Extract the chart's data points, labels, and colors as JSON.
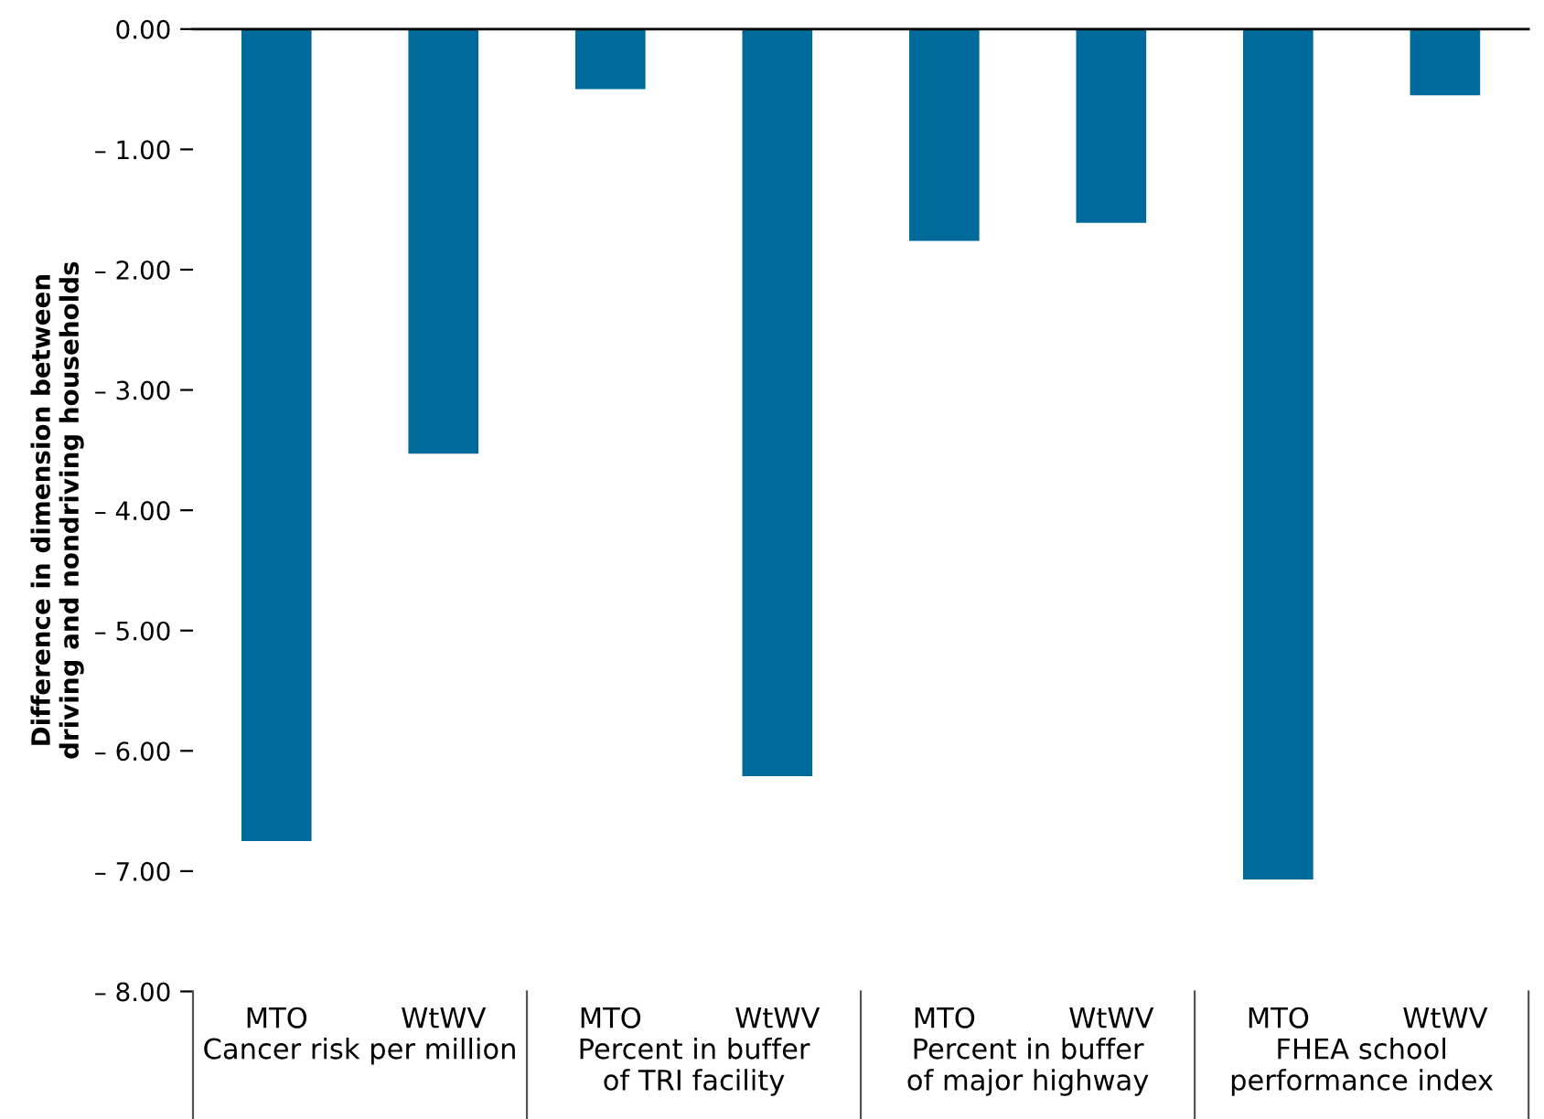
{
  "chart_data": {
    "type": "bar",
    "ylabel": "Difference in dimension between\ndriving and nondriving households",
    "categories": [
      "MTO",
      "WtWV",
      "MTO",
      "WtWV",
      "MTO",
      "WtWV",
      "MTO",
      "WtWV"
    ],
    "values": [
      -6.75,
      -3.53,
      -0.5,
      -6.21,
      -1.76,
      -1.61,
      -7.07,
      -0.55
    ],
    "color": "#006a9a",
    "ylim": [
      -8,
      0
    ],
    "yticks": [
      {
        "value": 0,
        "label": "0.00"
      },
      {
        "value": -1,
        "label": "– 1.00"
      },
      {
        "value": -2,
        "label": "– 2.00"
      },
      {
        "value": -3,
        "label": "– 3.00"
      },
      {
        "value": -4,
        "label": "– 4.00"
      },
      {
        "value": -5,
        "label": "– 5.00"
      },
      {
        "value": -6,
        "label": "– 6.00"
      },
      {
        "value": -7,
        "label": "– 7.00"
      },
      {
        "value": -8,
        "label": "– 8.00"
      }
    ],
    "annotations": [
      "Cancer risk per million",
      "Percent in buffer\nof TRI facility",
      "Percent in buffer\nof major highway",
      "FHEA school\nperformance index"
    ],
    "grid": false,
    "legend": false
  }
}
